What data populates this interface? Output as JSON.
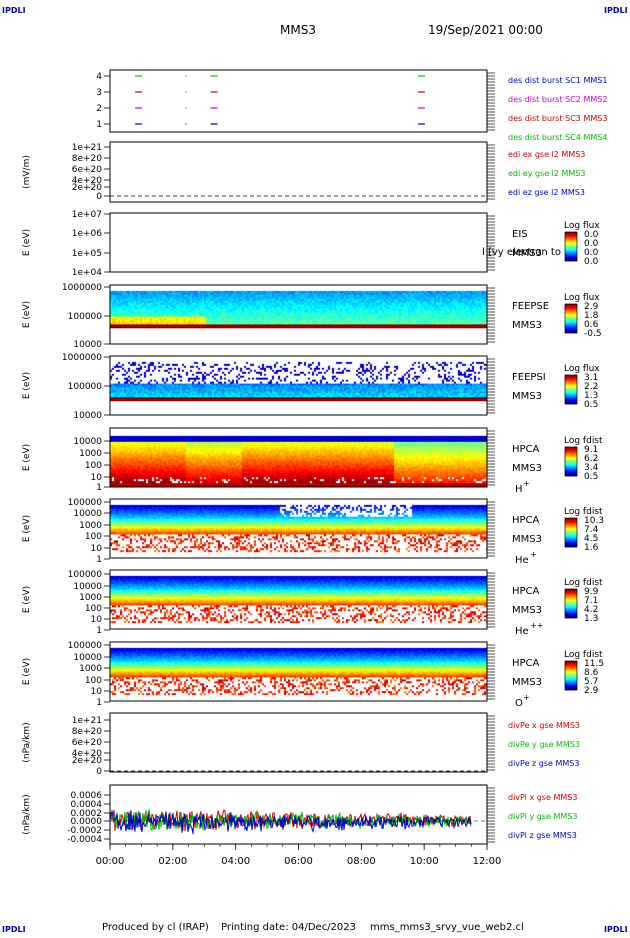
{
  "corner_label": "IPDLI",
  "header": {
    "title": "MMS3",
    "date": "19/Sep/2021 00:00"
  },
  "footer": {
    "produced": "Produced by cl (IRAP)",
    "printing": "Printing date: 04/Dec/2023",
    "file": "mms_mms3_srvy_vue_web2.cl"
  },
  "x_axis": {
    "ticks": [
      "00:00",
      "02:00",
      "04:00",
      "06:00",
      "08:00",
      "10:00",
      "12:00"
    ],
    "range_hours": [
      0,
      12
    ]
  },
  "chart_data": [
    {
      "type": "scatter",
      "id": "burst",
      "yticks": [
        "4",
        "3",
        "2",
        "1"
      ],
      "series": [
        {
          "name": "des dist burst SC1 MMS1",
          "color": "#0000cc",
          "row": 1,
          "x_hours": [
            0.8,
            2.4,
            3.2,
            9.8
          ]
        },
        {
          "name": "des dist burst SC2 MMS2",
          "color": "#cc00cc",
          "row": 2,
          "x_hours": [
            0.8,
            2.4,
            3.2,
            9.8
          ]
        },
        {
          "name": "des dist burst SC3 MMS3",
          "color": "#cc0000",
          "row": 3,
          "x_hours": [
            0.8,
            2.4,
            3.2,
            9.8
          ]
        },
        {
          "name": "des dist burst SC4 MMS4",
          "color": "#00bb00",
          "row": 4,
          "x_hours": [
            0.8,
            2.4,
            3.2,
            9.8
          ]
        }
      ]
    },
    {
      "type": "line",
      "id": "edi",
      "ylabel": "(mV/m)",
      "yticks": [
        "1e+21",
        "8e+20",
        "6e+20",
        "4e+20",
        "2e+20",
        "0"
      ],
      "series": [
        {
          "name": "edi ex gse l2 MMS3",
          "color": "#cc0000"
        },
        {
          "name": "edi ey gse l2 MMS3",
          "color": "#00bb00"
        },
        {
          "name": "edi ez gse l2 MMS3",
          "color": "#0000cc"
        }
      ]
    },
    {
      "type": "heatmap",
      "id": "eis",
      "ylabel": "E (eV)",
      "yticks": [
        "1e+07",
        "1e+06",
        "1e+05",
        "1e+04"
      ],
      "label_lines": [
        "EIS",
        "MMS3"
      ],
      "overlay": "l [vy electron to",
      "colorbar": {
        "title": "Log flux",
        "ticks": [
          "0.0",
          "0.0",
          "0.0",
          "0.0"
        ]
      }
    },
    {
      "type": "heatmap",
      "id": "feeps_e",
      "ylabel": "E (eV)",
      "yticks": [
        "1000000",
        "100000",
        "10000"
      ],
      "label_lines": [
        "FEEPSE",
        "MMS3"
      ],
      "colorbar": {
        "title": "Log flux",
        "ticks": [
          "2.9",
          "1.8",
          "0.6",
          "-0.5"
        ]
      }
    },
    {
      "type": "heatmap",
      "id": "feeps_i",
      "ylabel": "E (eV)",
      "yticks": [
        "1000000",
        "100000",
        "10000"
      ],
      "label_lines": [
        "FEEPSI",
        "MMS3"
      ],
      "colorbar": {
        "title": "Log flux",
        "ticks": [
          "3.1",
          "2.2",
          "1.3",
          "0.5"
        ]
      }
    },
    {
      "type": "heatmap",
      "id": "hpca_h",
      "ylabel": "E (eV)",
      "yticks": [
        "10000",
        "1000",
        "100",
        "10",
        "1"
      ],
      "label_lines": [
        "HPCA",
        "MMS3"
      ],
      "species": "H",
      "charge": "+",
      "colorbar": {
        "title": "Log fdist",
        "ticks": [
          "9.1",
          "6.2",
          "3.4",
          "0.5"
        ]
      }
    },
    {
      "type": "heatmap",
      "id": "hpca_he",
      "ylabel": "E (eV)",
      "yticks": [
        "100000",
        "10000",
        "1000",
        "100",
        "10",
        "1"
      ],
      "label_lines": [
        "HPCA",
        "MMS3"
      ],
      "species": "He",
      "charge": "+",
      "colorbar": {
        "title": "Log fdist",
        "ticks": [
          "10.3",
          "7.4",
          "4.5",
          "1.6"
        ]
      }
    },
    {
      "type": "heatmap",
      "id": "hpca_hepp",
      "ylabel": "E (eV)",
      "yticks": [
        "100000",
        "10000",
        "1000",
        "100",
        "10",
        "1"
      ],
      "label_lines": [
        "HPCA",
        "MMS3"
      ],
      "species": "He",
      "charge": "++",
      "colorbar": {
        "title": "Log fdist",
        "ticks": [
          "9.9",
          "7.1",
          "4.2",
          "1.3"
        ]
      }
    },
    {
      "type": "heatmap",
      "id": "hpca_o",
      "ylabel": "E (eV)",
      "yticks": [
        "100000",
        "10000",
        "1000",
        "100",
        "10",
        "1"
      ],
      "label_lines": [
        "HPCA",
        "MMS3"
      ],
      "species": "O",
      "charge": "+",
      "colorbar": {
        "title": "Log fdist",
        "ticks": [
          "11.5",
          "8.6",
          "5.7",
          "2.9"
        ]
      }
    },
    {
      "type": "line",
      "id": "divpe",
      "ylabel": "(nPa/km)",
      "yticks": [
        "1e+21",
        "8e+20",
        "6e+20",
        "4e+20",
        "2e+20",
        "0"
      ],
      "series": [
        {
          "name": "divPe x gse MMS3",
          "color": "#cc0000"
        },
        {
          "name": "divPe y gse MMS3",
          "color": "#00bb00"
        },
        {
          "name": "divPe z gse MMS3",
          "color": "#0000cc"
        }
      ]
    },
    {
      "type": "line",
      "id": "divpi",
      "ylabel": "(nPa/km)",
      "yticks": [
        "0.0006",
        "0.0004",
        "0.0002",
        "0.0000",
        "-0.0002",
        "-0.0004"
      ],
      "ylim": [
        -0.0005,
        0.0007
      ],
      "series": [
        {
          "name": "divPi x gse MMS3",
          "color": "#cc0000"
        },
        {
          "name": "divPi y gse MMS3",
          "color": "#00bb00"
        },
        {
          "name": "divPi z gse MMS3",
          "color": "#0000cc"
        }
      ]
    }
  ]
}
